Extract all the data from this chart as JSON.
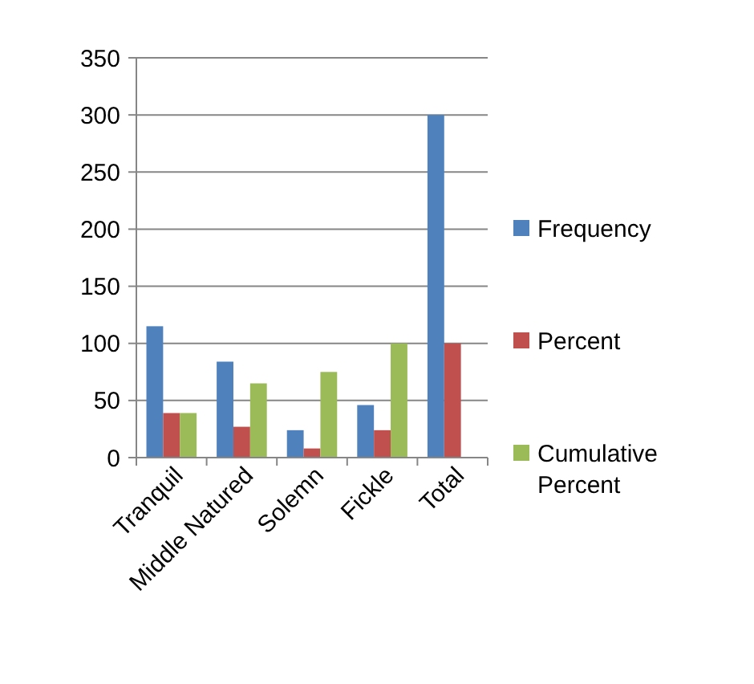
{
  "chart_data": {
    "type": "bar",
    "categories": [
      "Tranquil",
      "Middle Natured",
      "Solemn",
      "Fickle",
      "Total"
    ],
    "series": [
      {
        "name": "Frequency",
        "color": "#4f81bd",
        "values": [
          115,
          84,
          24,
          46,
          300
        ]
      },
      {
        "name": "Percent",
        "color": "#c0504d",
        "values": [
          39,
          27,
          8,
          24,
          100
        ]
      },
      {
        "name": "Cumulative Percent",
        "color": "#9bbb59",
        "values": [
          39,
          65,
          75,
          100,
          null
        ]
      }
    ],
    "ylim": [
      0,
      350
    ],
    "yticks": [
      0,
      50,
      100,
      150,
      200,
      250,
      300,
      350
    ],
    "grid": "y",
    "legend": "right"
  }
}
